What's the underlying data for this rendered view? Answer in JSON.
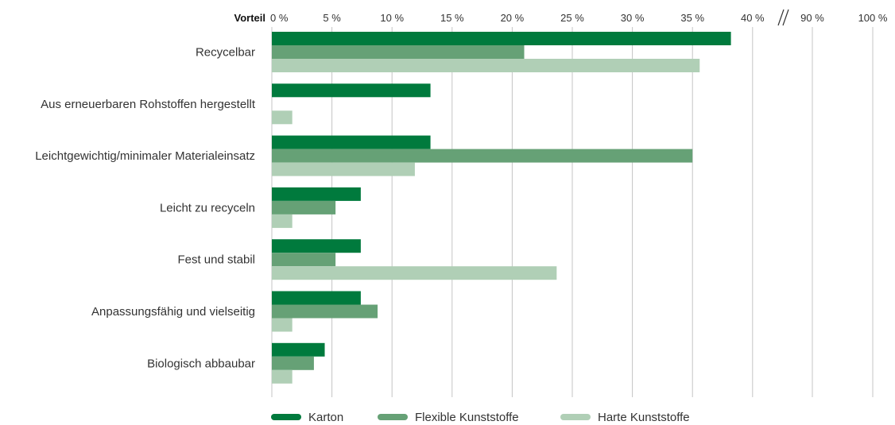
{
  "chart_data": {
    "type": "bar",
    "orientation": "horizontal",
    "header_label": "Vorteil",
    "axis_break": true,
    "x_ticks": [
      {
        "value": 0,
        "label": "0 %"
      },
      {
        "value": 5,
        "label": "5 %"
      },
      {
        "value": 10,
        "label": "10 %"
      },
      {
        "value": 15,
        "label": "15 %"
      },
      {
        "value": 20,
        "label": "20 %"
      },
      {
        "value": 25,
        "label": "25 %"
      },
      {
        "value": 30,
        "label": "30 %"
      },
      {
        "value": 35,
        "label": "35 %"
      },
      {
        "value": 40,
        "label": "40 %"
      },
      {
        "value": 90,
        "label": "90 %"
      },
      {
        "value": 100,
        "label": "100 %"
      }
    ],
    "grid": true,
    "legend_position": "bottom",
    "categories": [
      "Recycelbar",
      "Aus erneuerbaren Rohstoffen hergestellt",
      "Leichtgewichtig/minimaler Materialeinsatz",
      "Leicht zu recyceln",
      "Fest und stabil",
      "Anpassungsfähig und vielseitig",
      "Biologisch abbaubar"
    ],
    "series": [
      {
        "name": "Karton",
        "color": "#007a3d",
        "values": [
          38.2,
          13.2,
          13.2,
          7.4,
          7.4,
          7.4,
          4.4
        ]
      },
      {
        "name": "Flexible Kunststoffe",
        "color": "#66a176",
        "values": [
          21.0,
          0,
          35.0,
          5.3,
          5.3,
          8.8,
          3.5
        ]
      },
      {
        "name": "Harte Kunststoffe",
        "color": "#b0cfb6",
        "values": [
          35.6,
          1.7,
          11.9,
          1.7,
          23.7,
          1.7,
          1.7
        ]
      }
    ]
  }
}
